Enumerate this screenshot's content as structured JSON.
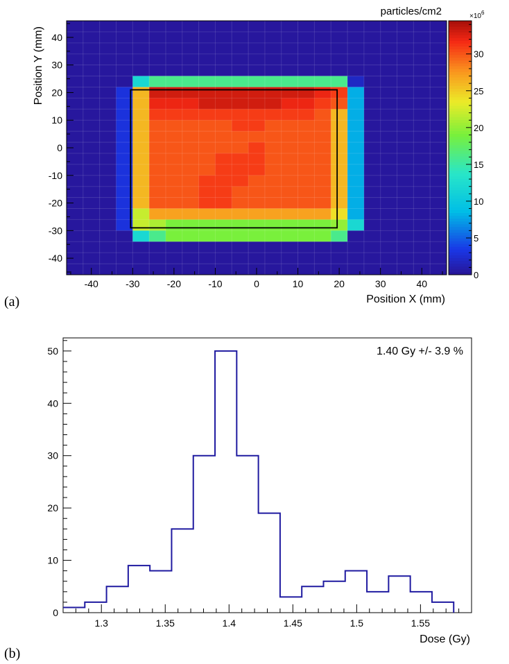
{
  "chart_data": [
    {
      "type": "heatmap",
      "panel_label": "(a)",
      "xlabel": "Position X (mm)",
      "ylabel": "Position Y (mm)",
      "colorbar_title": "particles/cm2",
      "colorbar_multiplier": "×10",
      "colorbar_exponent": "6",
      "xlim": [
        -46,
        46
      ],
      "ylim": [
        -46,
        46
      ],
      "zlim": [
        0,
        34.5
      ],
      "x_ticks": [
        -40,
        -30,
        -20,
        -10,
        0,
        10,
        20,
        30,
        40
      ],
      "y_ticks": [
        -40,
        -30,
        -20,
        -10,
        0,
        10,
        20,
        30,
        40
      ],
      "colorbar_ticks": [
        0,
        5,
        10,
        15,
        20,
        25,
        30
      ],
      "cells_x": [
        -46,
        -42,
        -38,
        -34,
        -30,
        -26,
        -22,
        -18,
        -14,
        -10,
        -6,
        -2,
        2,
        6,
        10,
        14,
        18,
        22,
        26,
        30,
        34,
        38,
        42
      ],
      "cells_y": [
        42,
        38,
        34,
        30,
        26,
        22,
        18,
        14,
        10,
        6,
        2,
        -2,
        -6,
        -10,
        -14,
        -18,
        -22,
        -26,
        -30,
        -34,
        -38,
        -42,
        -46
      ],
      "z": [
        [
          0.3,
          0.3,
          0.3,
          0.3,
          0.3,
          0.3,
          0.3,
          0.3,
          0.3,
          0.3,
          0.3,
          0.3,
          0.3,
          0.3,
          0.3,
          0.3,
          0.3,
          0.3,
          0.3,
          0.3,
          0.3,
          0.3,
          0.3
        ],
        [
          0.3,
          0.3,
          0.3,
          0.3,
          0.3,
          0.3,
          0.3,
          0.3,
          0.3,
          0.3,
          0.3,
          0.3,
          0.3,
          0.3,
          0.3,
          0.3,
          0.3,
          0.3,
          0.3,
          0.3,
          0.3,
          0.3,
          0.3
        ],
        [
          0.3,
          0.3,
          0.3,
          0.3,
          0.3,
          0.3,
          0.3,
          0.3,
          0.3,
          0.3,
          0.3,
          0.3,
          0.3,
          0.3,
          0.3,
          0.3,
          0.3,
          0.3,
          0.3,
          0.3,
          0.3,
          0.3,
          0.3
        ],
        [
          0.3,
          0.3,
          0.3,
          0.3,
          0.3,
          0.3,
          0.3,
          0.3,
          0.3,
          0.3,
          0.3,
          0.3,
          0.3,
          0.3,
          0.3,
          0.3,
          0.3,
          0.3,
          0.3,
          0.3,
          0.3,
          0.3,
          0.3
        ],
        [
          0.3,
          0.3,
          0.3,
          0.3,
          0.3,
          0.3,
          0.3,
          0.3,
          0.3,
          0.3,
          0.3,
          0.3,
          0.3,
          0.3,
          0.3,
          0.3,
          0.3,
          0.3,
          0.3,
          0.3,
          0.3,
          0.3,
          0.3
        ],
        [
          0.3,
          0.3,
          0.3,
          0.3,
          12,
          16,
          16,
          16,
          16,
          16,
          16,
          16,
          16,
          16,
          16,
          16,
          16,
          2,
          0.3,
          0.3,
          0.3,
          0.3,
          0.3
        ],
        [
          0.3,
          0.3,
          0.3,
          3,
          26,
          33,
          33,
          33,
          33,
          33,
          33,
          33,
          33,
          33,
          33,
          32,
          31,
          8,
          0.3,
          0.3,
          0.3,
          0.3,
          0.3
        ],
        [
          0.3,
          0.3,
          0.3,
          3,
          26,
          32,
          32,
          32,
          33,
          33,
          33,
          33,
          33,
          32,
          32,
          31,
          30,
          8,
          0.3,
          0.3,
          0.3,
          0.3,
          0.3
        ],
        [
          0.3,
          0.3,
          0.3,
          3,
          26,
          31,
          31,
          31,
          31,
          31,
          31,
          31,
          31,
          31,
          31,
          30,
          26,
          8,
          0.3,
          0.3,
          0.3,
          0.3,
          0.3
        ],
        [
          0.3,
          0.3,
          0.3,
          3,
          26,
          30,
          30,
          30,
          30,
          30,
          31,
          31,
          30,
          30,
          30,
          30,
          26,
          8,
          0.3,
          0.3,
          0.3,
          0.3,
          0.3
        ],
        [
          0.3,
          0.3,
          0.3,
          3,
          26,
          30,
          30,
          30,
          30,
          30,
          30,
          30,
          30,
          30,
          30,
          30,
          26,
          8,
          0.3,
          0.3,
          0.3,
          0.3,
          0.3
        ],
        [
          0.3,
          0.3,
          0.3,
          3,
          26,
          30,
          30,
          30,
          30,
          30,
          30,
          31,
          30,
          30,
          30,
          30,
          26,
          8,
          0.3,
          0.3,
          0.3,
          0.3,
          0.3
        ],
        [
          0.3,
          0.3,
          0.3,
          3,
          26,
          30,
          30,
          30,
          30,
          31,
          31,
          31,
          30,
          30,
          30,
          30,
          26,
          8,
          0.3,
          0.3,
          0.3,
          0.3,
          0.3
        ],
        [
          0.3,
          0.3,
          0.3,
          3,
          26,
          30,
          30,
          30,
          30,
          31,
          31,
          31,
          30,
          30,
          30,
          30,
          26,
          8,
          0.3,
          0.3,
          0.3,
          0.3,
          0.3
        ],
        [
          0.3,
          0.3,
          0.3,
          3,
          26,
          30,
          30,
          30,
          31,
          31,
          31,
          30,
          30,
          30,
          30,
          30,
          26,
          8,
          0.3,
          0.3,
          0.3,
          0.3,
          0.3
        ],
        [
          0.3,
          0.3,
          0.3,
          3,
          26,
          30,
          30,
          30,
          31,
          31,
          30,
          30,
          30,
          30,
          30,
          30,
          26,
          8,
          0.3,
          0.3,
          0.3,
          0.3,
          0.3
        ],
        [
          0.3,
          0.3,
          0.3,
          3,
          26,
          30,
          30,
          30,
          31,
          31,
          30,
          30,
          30,
          30,
          30,
          30,
          26,
          8,
          0.3,
          0.3,
          0.3,
          0.3,
          0.3
        ],
        [
          0.3,
          0.3,
          0.3,
          3,
          22,
          27,
          27,
          27,
          27,
          27,
          27,
          27,
          27,
          27,
          27,
          27,
          24,
          8,
          0.3,
          0.3,
          0.3,
          0.3,
          0.3
        ],
        [
          0.3,
          0.3,
          0.3,
          3,
          22,
          21,
          19,
          19,
          19,
          19,
          19,
          19,
          19,
          19,
          19,
          19,
          20,
          12,
          0.3,
          0.3,
          0.3,
          0.3,
          0.3
        ],
        [
          0.3,
          0.3,
          0.3,
          0.3,
          12,
          16,
          19,
          19,
          19,
          19,
          19,
          19,
          19,
          19,
          19,
          19,
          16,
          0.3,
          0.3,
          0.3,
          0.3,
          0.3,
          0.3
        ],
        [
          0.3,
          0.3,
          0.3,
          0.3,
          0.3,
          0.3,
          0.3,
          0.3,
          0.3,
          0.3,
          0.3,
          0.3,
          0.3,
          0.3,
          0.3,
          0.3,
          0.3,
          0.3,
          0.3,
          0.3,
          0.3,
          0.3,
          0.3
        ],
        [
          0.3,
          0.3,
          0.3,
          0.3,
          0.3,
          0.3,
          0.3,
          0.3,
          0.3,
          0.3,
          0.3,
          0.3,
          0.3,
          0.3,
          0.3,
          0.3,
          0.3,
          0.3,
          0.3,
          0.3,
          0.3,
          0.3,
          0.3
        ],
        [
          0.3,
          0.3,
          0.3,
          0.3,
          0.3,
          0.3,
          0.3,
          0.3,
          0.3,
          0.3,
          0.3,
          0.3,
          0.3,
          0.3,
          0.3,
          0.3,
          0.3,
          0.3,
          0.3,
          0.3,
          0.3,
          0.3,
          0.3
        ]
      ],
      "overlay_rectangle": {
        "x1": -30.5,
        "x2": 19.5,
        "y1": -29,
        "y2": 21
      }
    },
    {
      "type": "histogram",
      "panel_label": "(b)",
      "xlabel": "Dose (Gy)",
      "ylabel": "",
      "annotation": "1.40 Gy +/- 3.9 %",
      "line_color": "#1f1aa0",
      "xlim": [
        1.27,
        1.59
      ],
      "ylim": [
        0,
        52.5
      ],
      "x_ticks": [
        1.3,
        1.35,
        1.4,
        1.45,
        1.5,
        1.55
      ],
      "x_tick_labels": [
        "1.3",
        "1.35",
        "1.4",
        "1.45",
        "1.5",
        "1.55"
      ],
      "y_ticks": [
        0,
        10,
        20,
        30,
        40,
        50
      ],
      "bin_edges": [
        1.27,
        1.287,
        1.304,
        1.321,
        1.338,
        1.355,
        1.372,
        1.389,
        1.406,
        1.423,
        1.44,
        1.457,
        1.474,
        1.491,
        1.508,
        1.525,
        1.542,
        1.559,
        1.576
      ],
      "counts": [
        1,
        2,
        5,
        9,
        8,
        16,
        30,
        50,
        30,
        19,
        3,
        5,
        6,
        8,
        4,
        7,
        4,
        2
      ]
    }
  ]
}
